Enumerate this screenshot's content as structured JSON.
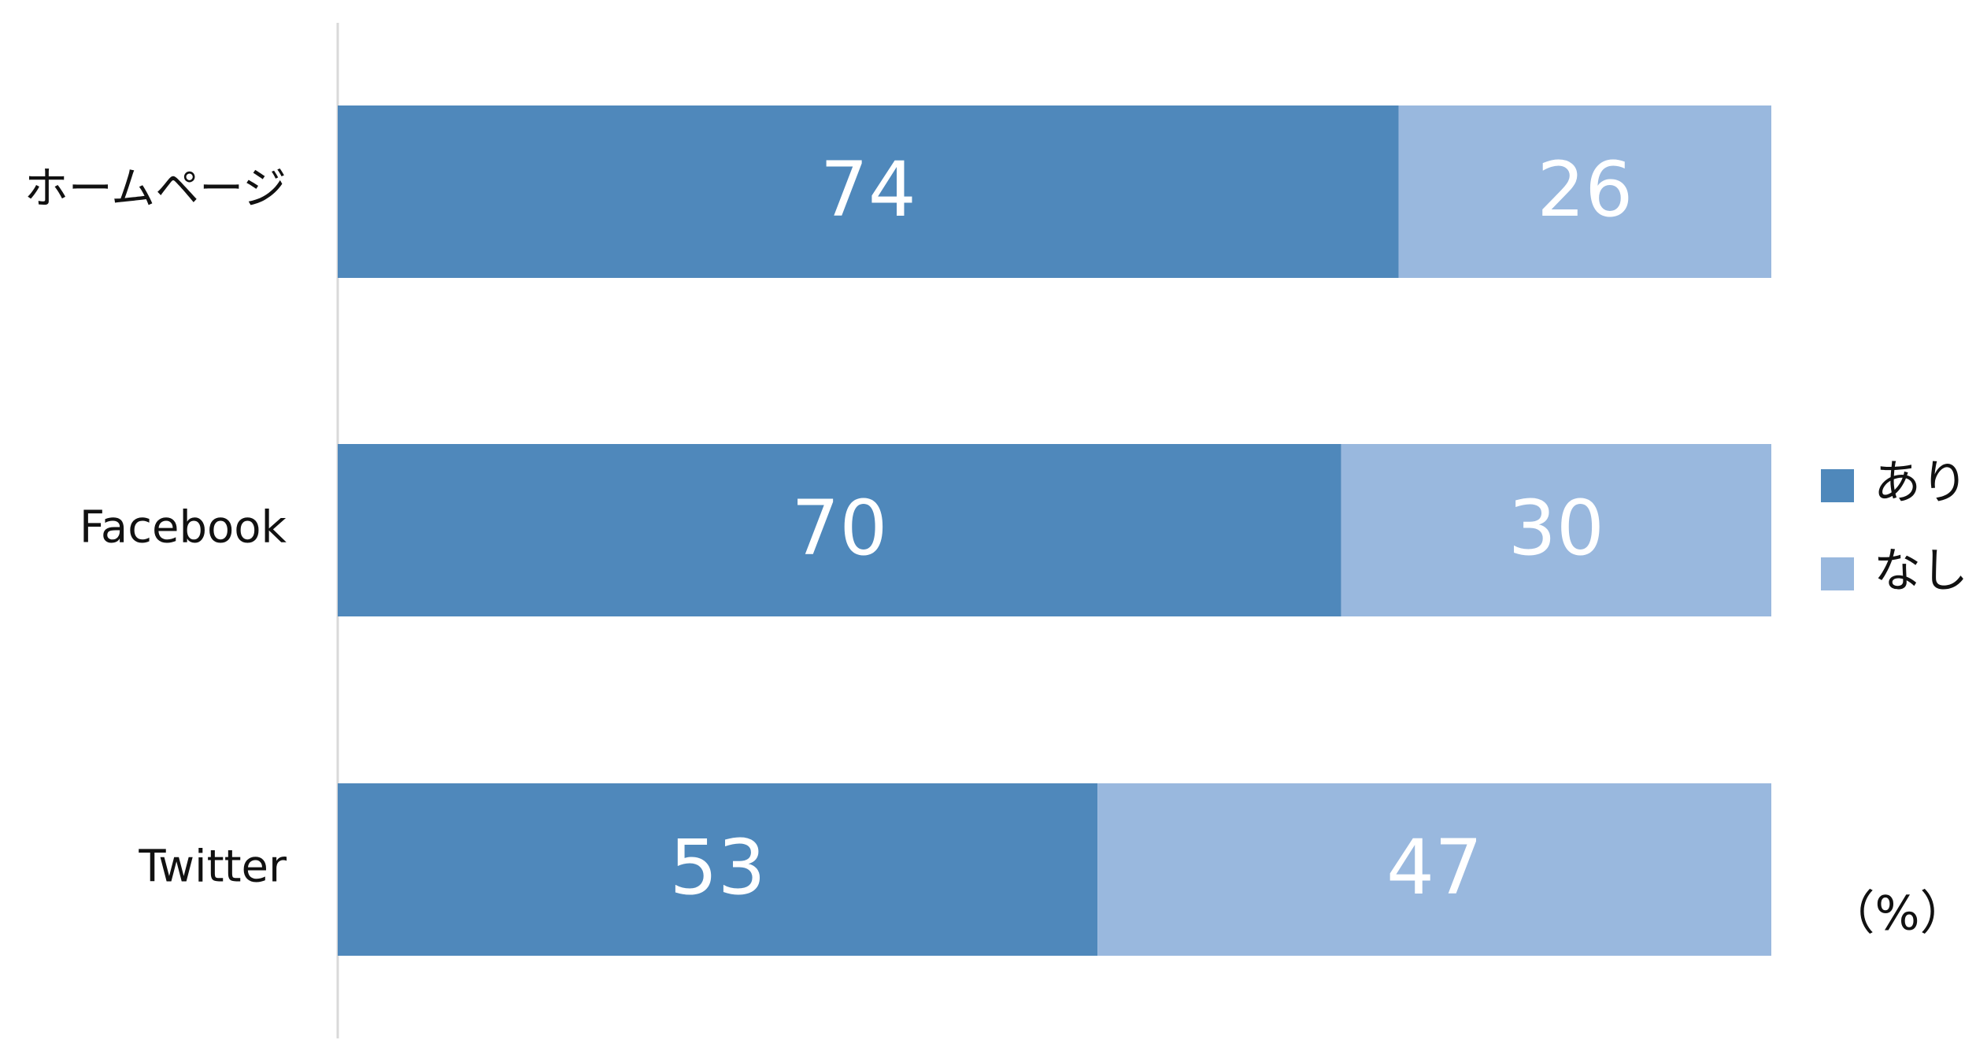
{
  "chart_data": {
    "type": "stacked-barh",
    "categories": [
      "ホームページ",
      "Facebook",
      "Twitter"
    ],
    "series": [
      {
        "name": "あり",
        "color": "#4f88bb",
        "values": [
          74,
          70,
          53
        ]
      },
      {
        "name": "なし",
        "color": "#99b8de",
        "values": [
          26,
          30,
          47
        ]
      }
    ],
    "xlim": [
      0,
      100
    ],
    "unit_label": "（%）",
    "legend": "right"
  }
}
